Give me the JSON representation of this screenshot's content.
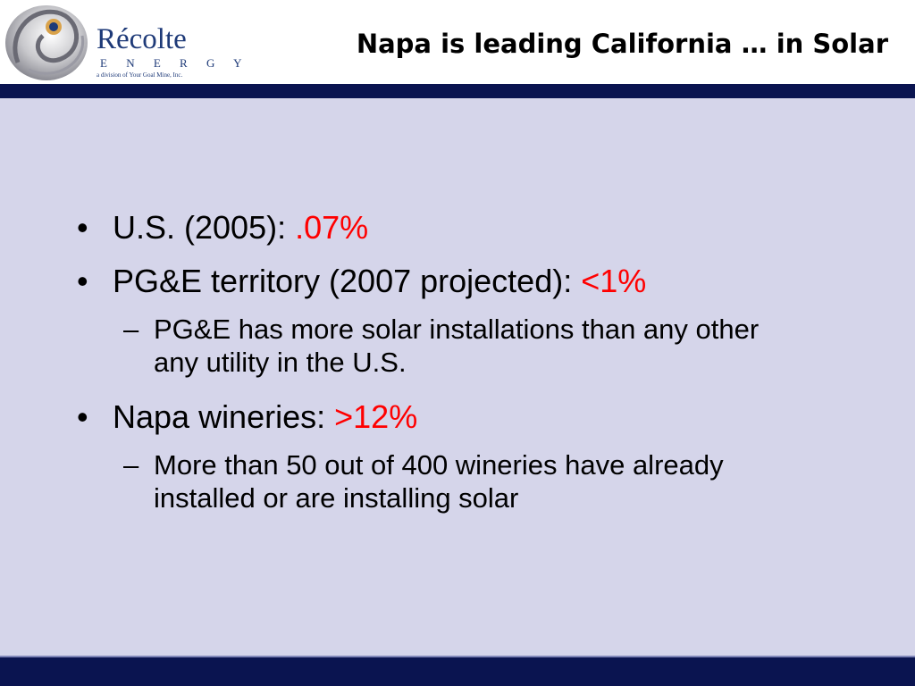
{
  "logo": {
    "name": "Récolte",
    "subname": "E N E R G Y",
    "tagline": "a division of Your Goal Mine, Inc.",
    "icon": "swirl-logo-icon"
  },
  "title": "Napa is leading California … in Solar",
  "bullets": [
    {
      "label": "U.S. (2005): ",
      "value": ".07%"
    },
    {
      "label": "PG&E territory (2007 projected): ",
      "value": "<1%",
      "sub": "PG&E has more solar installations than any other any utility in the U.S."
    },
    {
      "label": "Napa wineries: ",
      "value": ">12%",
      "sub": "More than 50 out of 400 wineries have already installed or are installing solar"
    }
  ],
  "bullet_glyph": "•",
  "dash_glyph": "–",
  "colors": {
    "accent": "#0a1450",
    "background": "#d5d5ea",
    "highlight": "#ff0000",
    "logo": "#1e3a78"
  }
}
